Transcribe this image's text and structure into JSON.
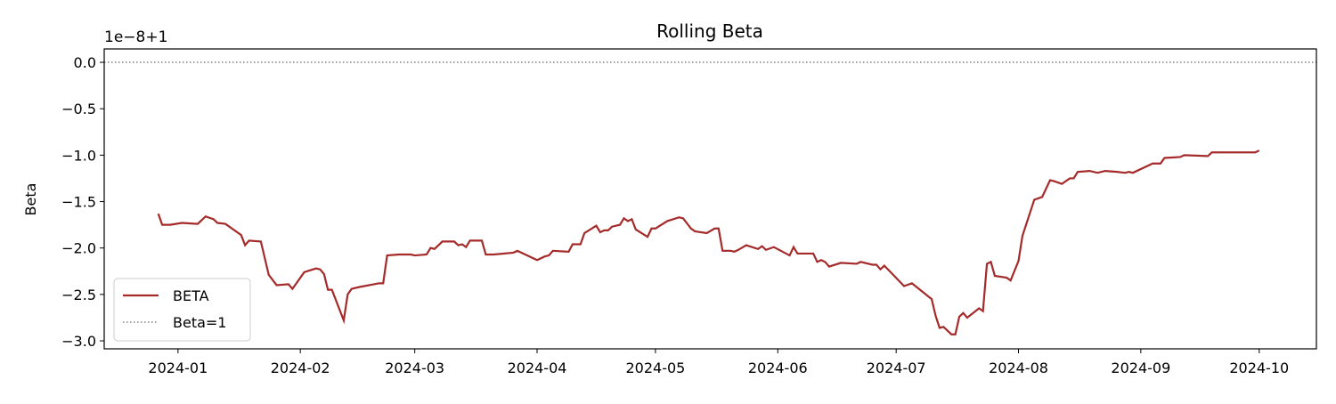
{
  "chart_data": {
    "type": "line",
    "title": "Rolling Beta",
    "ylabel": "Beta",
    "offset_label": "1e−8+1",
    "x": [
      -5,
      -4,
      -2,
      1,
      5,
      7,
      9,
      10,
      12,
      16,
      17,
      18,
      21,
      23,
      25,
      28,
      29,
      32,
      35,
      36,
      37,
      38,
      39,
      42,
      43,
      44,
      46,
      51,
      52,
      53,
      56,
      59,
      60,
      63,
      64,
      65,
      67,
      70,
      71,
      72,
      73,
      74,
      77,
      78,
      80,
      85,
      86,
      88,
      91,
      93,
      94,
      95,
      99,
      100,
      102,
      103,
      106,
      107,
      108,
      109,
      110,
      112,
      113,
      114,
      115,
      116,
      119,
      120,
      121,
      124,
      127,
      128,
      130,
      131,
      134,
      136,
      137,
      138,
      140,
      141,
      142,
      144,
      147,
      148,
      149,
      151,
      155,
      156,
      157,
      161,
      162,
      163,
      164,
      165,
      168,
      172,
      173,
      176,
      177,
      178,
      179,
      184,
      186,
      191,
      192,
      193,
      194,
      196,
      197,
      198,
      199,
      200,
      203,
      204,
      205,
      206,
      207,
      210,
      211,
      213,
      214,
      217,
      219,
      221,
      222,
      224,
      226,
      227,
      228,
      231,
      233,
      235,
      238,
      240,
      241,
      242,
      247,
      249,
      250,
      254,
      255,
      261,
      262,
      269,
      272,
      273,
      274
    ],
    "series": [
      {
        "name": "BETA",
        "color": "#a52a2a",
        "values": [
          -1.63,
          -1.75,
          -1.75,
          -1.73,
          -1.74,
          -1.66,
          -1.69,
          -1.73,
          -1.74,
          -1.86,
          -1.97,
          -1.92,
          -1.93,
          -2.29,
          -2.4,
          -2.39,
          -2.44,
          -2.26,
          -2.22,
          -2.23,
          -2.28,
          -2.45,
          -2.45,
          -2.78,
          -2.5,
          -2.44,
          -2.42,
          -2.38,
          -2.38,
          -2.08,
          -2.07,
          -2.07,
          -2.08,
          -2.07,
          -2.0,
          -2.01,
          -1.93,
          -1.93,
          -1.97,
          -1.96,
          -1.99,
          -1.92,
          -1.92,
          -2.07,
          -2.07,
          -2.05,
          -2.03,
          -2.07,
          -2.13,
          -2.09,
          -2.08,
          -2.03,
          -2.04,
          -1.96,
          -1.96,
          -1.84,
          -1.76,
          -1.83,
          -1.81,
          -1.81,
          -1.77,
          -1.75,
          -1.68,
          -1.71,
          -1.69,
          -1.8,
          -1.88,
          -1.79,
          -1.79,
          -1.71,
          -1.67,
          -1.68,
          -1.79,
          -1.82,
          -1.84,
          -1.79,
          -1.79,
          -2.03,
          -2.03,
          -2.04,
          -2.02,
          -1.97,
          -2.01,
          -1.98,
          -2.02,
          -1.99,
          -2.08,
          -1.99,
          -2.06,
          -2.06,
          -2.15,
          -2.13,
          -2.15,
          -2.2,
          -2.16,
          -2.17,
          -2.15,
          -2.18,
          -2.18,
          -2.23,
          -2.19,
          -2.41,
          -2.38,
          -2.55,
          -2.73,
          -2.86,
          -2.85,
          -2.93,
          -2.93,
          -2.74,
          -2.7,
          -2.75,
          -2.65,
          -2.68,
          -2.17,
          -2.15,
          -2.3,
          -2.32,
          -2.35,
          -2.14,
          -1.87,
          -1.48,
          -1.45,
          -1.27,
          -1.28,
          -1.31,
          -1.25,
          -1.25,
          -1.18,
          -1.17,
          -1.19,
          -1.17,
          -1.18,
          -1.19,
          -1.18,
          -1.19,
          -1.09,
          -1.09,
          -1.03,
          -1.02,
          -1.0,
          -1.01,
          -0.97,
          -0.97,
          -0.97,
          -0.97,
          -0.95
        ]
      }
    ],
    "hline": {
      "name": "Beta=1",
      "value": 0,
      "color": "#808080"
    },
    "xlim": [
      -18.7,
      288.5
    ],
    "xticks": [
      {
        "value": 0,
        "label": "2024-01"
      },
      {
        "value": 31,
        "label": "2024-02"
      },
      {
        "value": 60,
        "label": "2024-03"
      },
      {
        "value": 91,
        "label": "2024-04"
      },
      {
        "value": 121,
        "label": "2024-05"
      },
      {
        "value": 152,
        "label": "2024-06"
      },
      {
        "value": 182,
        "label": "2024-07"
      },
      {
        "value": 213,
        "label": "2024-08"
      },
      {
        "value": 244,
        "label": "2024-09"
      },
      {
        "value": 274,
        "label": "2024-10"
      }
    ],
    "ylim": [
      -3.086,
      0.144
    ],
    "yticks": [
      {
        "value": -3,
        "label": "−3.0"
      },
      {
        "value": -2.5,
        "label": "−2.5"
      },
      {
        "value": -2,
        "label": "−2.0"
      },
      {
        "value": -1.5,
        "label": "−1.5"
      },
      {
        "value": -1,
        "label": "−1.0"
      },
      {
        "value": -0.5,
        "label": "−0.5"
      },
      {
        "value": 0,
        "label": "0.0"
      }
    ],
    "legend": "lower left"
  }
}
